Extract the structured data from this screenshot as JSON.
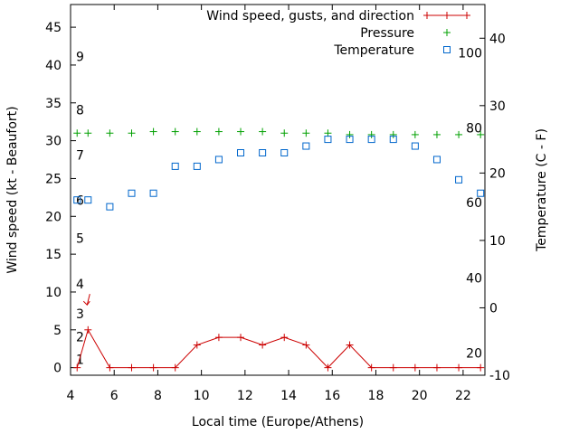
{
  "chart_data": {
    "type": "line",
    "title": "",
    "xlabel": "Local time (Europe/Athens)",
    "ylabel": "Wind speed (kt - Beaufort)",
    "y2label": "Temperature (C - F)",
    "xlim": [
      4,
      23
    ],
    "ylim": [
      -1,
      48
    ],
    "y2lim": [
      -10,
      45
    ],
    "x_ticks": [
      "4",
      "6",
      "8",
      "10",
      "12",
      "14",
      "16",
      "18",
      "20",
      "22"
    ],
    "y_ticks": [
      "0",
      "5",
      "10",
      "15",
      "20",
      "25",
      "30",
      "35",
      "40",
      "45"
    ],
    "y2_ticks": [
      "-10",
      "0",
      "10",
      "20",
      "30",
      "40"
    ],
    "beaufort_labels": [
      {
        "label": "1",
        "y": 1.1
      },
      {
        "label": "2",
        "y": 4.1
      },
      {
        "label": "3",
        "y": 7.1
      },
      {
        "label": "4",
        "y": 11.1
      },
      {
        "label": "5",
        "y": 17.1
      },
      {
        "label": "6",
        "y": 22.1
      },
      {
        "label": "7",
        "y": 28.1
      },
      {
        "label": "8",
        "y": 34.1
      },
      {
        "label": "9",
        "y": 41.1
      }
    ],
    "fahrenheit_labels": [
      {
        "label": "20",
        "t": -6.7
      },
      {
        "label": "40",
        "t": 4.4
      },
      {
        "label": "60",
        "t": 15.6
      },
      {
        "label": "80",
        "t": 26.7
      },
      {
        "label": "100",
        "t": 37.8
      }
    ],
    "legend_position": "top-right",
    "series": [
      {
        "name": "Wind speed, gusts, and direction",
        "color": "#cc0000",
        "marker": "plus-line",
        "x": [
          4.3,
          4.8,
          5.8,
          6.8,
          7.8,
          8.8,
          9.8,
          10.8,
          11.8,
          12.8,
          13.8,
          14.8,
          15.8,
          16.8,
          17.8,
          18.8,
          19.8,
          20.8,
          21.8,
          22.8
        ],
        "y": [
          0,
          5,
          0,
          0,
          0,
          0,
          3,
          4,
          4,
          3,
          4,
          3,
          0,
          3,
          0,
          0,
          0,
          0,
          0,
          0
        ]
      },
      {
        "name": "Pressure",
        "color": "#00a000",
        "marker": "plus",
        "x": [
          4.3,
          4.8,
          5.8,
          6.8,
          7.8,
          8.8,
          9.8,
          10.8,
          11.8,
          12.8,
          13.8,
          14.8,
          15.8,
          16.8,
          17.8,
          18.8,
          19.8,
          20.8,
          21.8,
          22.8
        ],
        "y": [
          31,
          31,
          31,
          31,
          31.2,
          31.2,
          31.2,
          31.2,
          31.2,
          31.2,
          31,
          31,
          31,
          30.8,
          30.8,
          30.8,
          30.8,
          30.8,
          30.8,
          30.8
        ]
      },
      {
        "name": "Temperature",
        "color": "#0066cc",
        "marker": "square",
        "x": [
          4.3,
          4.8,
          5.8,
          6.8,
          7.8,
          8.8,
          9.8,
          10.8,
          11.8,
          12.8,
          13.8,
          14.8,
          15.8,
          16.8,
          17.8,
          18.8,
          19.8,
          20.8,
          21.8,
          22.8
        ],
        "y": [
          16,
          16,
          15,
          17,
          17,
          21,
          21,
          22,
          23,
          23,
          23,
          24,
          25,
          25,
          25,
          25,
          24,
          22,
          19,
          17
        ]
      }
    ],
    "annotations": [
      {
        "type": "wind-direction-arrow",
        "x": 4.8,
        "y": 8.3,
        "color": "#cc0000"
      }
    ]
  }
}
